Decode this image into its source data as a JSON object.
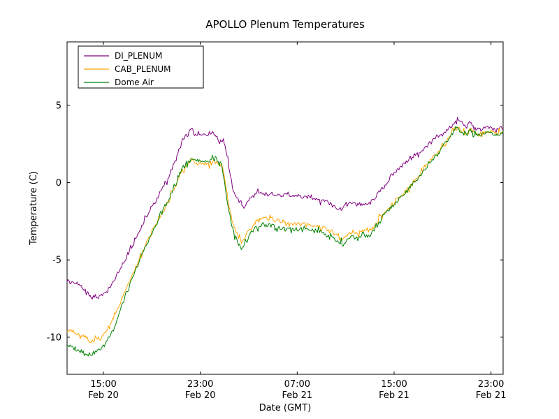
{
  "figure": {
    "title": "APOLLO Plenum Temperatures",
    "xlabel": "Date (GMT)",
    "ylabel": "Temperature (C)",
    "background": "#ffffff",
    "frame_color": "#000000"
  },
  "chart_data": {
    "type": "line",
    "title": "APOLLO Plenum Temperatures",
    "xlabel": "Date (GMT)",
    "ylabel": "Temperature (C)",
    "x_encoding": "hours after Feb 20 12:00 GMT",
    "xlim": [
      0,
      36
    ],
    "ylim": [
      -12.4,
      9.1
    ],
    "grid": false,
    "legend_position": "upper left",
    "yticks": [
      5,
      0,
      -5,
      -10
    ],
    "xticks": [
      {
        "t": 3,
        "label": [
          "15:00",
          "Feb 20"
        ]
      },
      {
        "t": 11,
        "label": [
          "23:00",
          "Feb 20"
        ]
      },
      {
        "t": 19,
        "label": [
          "07:00",
          "Feb 21"
        ]
      },
      {
        "t": 27,
        "label": [
          "15:00",
          "Feb 21"
        ]
      },
      {
        "t": 35,
        "label": [
          "23:00",
          "Feb 21"
        ]
      }
    ],
    "noise_amplitude": 0.12,
    "series": [
      {
        "name": "DI_PLENUM",
        "color": "#800080",
        "points": [
          [
            0,
            -6.3
          ],
          [
            0.5,
            -6.5
          ],
          [
            1,
            -6.6
          ],
          [
            1.5,
            -7.0
          ],
          [
            2,
            -7.4
          ],
          [
            2.5,
            -7.3
          ],
          [
            3,
            -7.2
          ],
          [
            3.5,
            -6.8
          ],
          [
            4,
            -6.2
          ],
          [
            4.5,
            -5.4
          ],
          [
            5,
            -4.7
          ],
          [
            5.5,
            -3.9
          ],
          [
            6,
            -3.1
          ],
          [
            6.5,
            -2.3
          ],
          [
            7,
            -1.6
          ],
          [
            7.5,
            -0.9
          ],
          [
            8,
            -0.2
          ],
          [
            8.5,
            0.6
          ],
          [
            9,
            1.5
          ],
          [
            9.3,
            2.2
          ],
          [
            9.6,
            2.9
          ],
          [
            10,
            3.1
          ],
          [
            10.3,
            3.5
          ],
          [
            10.6,
            3.2
          ],
          [
            11,
            3.2
          ],
          [
            11.5,
            3.1
          ],
          [
            12,
            3.3
          ],
          [
            12.3,
            3.0
          ],
          [
            12.6,
            2.6
          ],
          [
            12.9,
            2.8
          ],
          [
            13.2,
            1.8
          ],
          [
            13.5,
            0.3
          ],
          [
            13.8,
            -0.6
          ],
          [
            14.2,
            -1.2
          ],
          [
            14.6,
            -1.6
          ],
          [
            15,
            -1.1
          ],
          [
            15.5,
            -0.8
          ],
          [
            16,
            -0.7
          ],
          [
            16.5,
            -0.8
          ],
          [
            17,
            -0.7
          ],
          [
            17.5,
            -0.8
          ],
          [
            18,
            -0.8
          ],
          [
            18.5,
            -0.9
          ],
          [
            19,
            -0.8
          ],
          [
            19.5,
            -1.0
          ],
          [
            20,
            -0.9
          ],
          [
            20.5,
            -1.0
          ],
          [
            21,
            -1.1
          ],
          [
            21.5,
            -1.2
          ],
          [
            22,
            -1.4
          ],
          [
            22.4,
            -1.7
          ],
          [
            22.8,
            -1.6
          ],
          [
            23.2,
            -1.4
          ],
          [
            23.6,
            -1.3
          ],
          [
            24,
            -1.5
          ],
          [
            24.4,
            -1.4
          ],
          [
            24.8,
            -1.4
          ],
          [
            25.2,
            -1.2
          ],
          [
            25.6,
            -0.8
          ],
          [
            26,
            -0.4
          ],
          [
            26.5,
            0.1
          ],
          [
            27,
            0.6
          ],
          [
            27.5,
            1.0
          ],
          [
            28,
            1.3
          ],
          [
            28.5,
            1.6
          ],
          [
            29,
            1.9
          ],
          [
            29.5,
            2.2
          ],
          [
            30,
            2.6
          ],
          [
            30.5,
            2.9
          ],
          [
            31,
            3.1
          ],
          [
            31.5,
            3.5
          ],
          [
            32,
            3.9
          ],
          [
            32.3,
            4.1
          ],
          [
            32.6,
            3.8
          ],
          [
            33,
            3.6
          ],
          [
            33.3,
            3.9
          ],
          [
            33.6,
            3.5
          ],
          [
            34,
            3.4
          ],
          [
            34.5,
            3.6
          ],
          [
            35,
            3.5
          ],
          [
            35.5,
            3.4
          ],
          [
            36,
            3.5
          ]
        ]
      },
      {
        "name": "CAB_PLENUM",
        "color": "#ffa500",
        "points": [
          [
            0,
            -9.5
          ],
          [
            0.5,
            -9.7
          ],
          [
            1,
            -9.9
          ],
          [
            1.5,
            -10.0
          ],
          [
            2,
            -10.3
          ],
          [
            2.5,
            -10.1
          ],
          [
            3,
            -9.9
          ],
          [
            3.5,
            -9.3
          ],
          [
            4,
            -8.5
          ],
          [
            4.5,
            -7.6
          ],
          [
            5,
            -6.7
          ],
          [
            5.5,
            -5.8
          ],
          [
            6,
            -4.9
          ],
          [
            6.5,
            -4.0
          ],
          [
            7,
            -3.2
          ],
          [
            7.5,
            -2.5
          ],
          [
            8,
            -1.8
          ],
          [
            8.5,
            -1.0
          ],
          [
            9,
            -0.2
          ],
          [
            9.3,
            0.5
          ],
          [
            9.6,
            1.0
          ],
          [
            10,
            1.2
          ],
          [
            10.3,
            1.6
          ],
          [
            10.6,
            1.3
          ],
          [
            11,
            1.3
          ],
          [
            11.5,
            1.2
          ],
          [
            12,
            1.4
          ],
          [
            12.4,
            1.3
          ],
          [
            12.8,
            1.1
          ],
          [
            13,
            0.3
          ],
          [
            13.3,
            -1.2
          ],
          [
            13.6,
            -2.4
          ],
          [
            14,
            -3.3
          ],
          [
            14.4,
            -3.9
          ],
          [
            14.8,
            -3.4
          ],
          [
            15.2,
            -2.9
          ],
          [
            15.6,
            -2.5
          ],
          [
            16,
            -2.4
          ],
          [
            16.5,
            -2.3
          ],
          [
            17,
            -2.4
          ],
          [
            17.5,
            -2.5
          ],
          [
            18,
            -2.6
          ],
          [
            18.5,
            -2.7
          ],
          [
            19,
            -2.7
          ],
          [
            19.5,
            -2.6
          ],
          [
            20,
            -2.7
          ],
          [
            20.5,
            -2.8
          ],
          [
            21,
            -2.9
          ],
          [
            21.5,
            -3.0
          ],
          [
            22,
            -3.2
          ],
          [
            22.4,
            -3.6
          ],
          [
            22.8,
            -3.7
          ],
          [
            23.2,
            -3.3
          ],
          [
            23.6,
            -3.2
          ],
          [
            24,
            -3.4
          ],
          [
            24.4,
            -3.1
          ],
          [
            24.8,
            -3.2
          ],
          [
            25.2,
            -3.0
          ],
          [
            25.6,
            -2.6
          ],
          [
            26,
            -2.1
          ],
          [
            26.5,
            -1.7
          ],
          [
            27,
            -1.3
          ],
          [
            27.5,
            -0.9
          ],
          [
            28,
            -0.5
          ],
          [
            28.5,
            0.0
          ],
          [
            29,
            0.4
          ],
          [
            29.5,
            0.9
          ],
          [
            30,
            1.4
          ],
          [
            30.5,
            1.9
          ],
          [
            31,
            2.4
          ],
          [
            31.5,
            2.9
          ],
          [
            32,
            3.4
          ],
          [
            32.3,
            3.6
          ],
          [
            32.6,
            3.3
          ],
          [
            33,
            3.1
          ],
          [
            33.3,
            3.5
          ],
          [
            33.6,
            3.2
          ],
          [
            34,
            3.1
          ],
          [
            34.5,
            3.3
          ],
          [
            35,
            3.3
          ],
          [
            35.5,
            3.2
          ],
          [
            36,
            3.3
          ]
        ]
      },
      {
        "name": "Dome Air",
        "color": "#008000",
        "points": [
          [
            0,
            -10.5
          ],
          [
            0.5,
            -10.7
          ],
          [
            1,
            -10.9
          ],
          [
            1.5,
            -11.0
          ],
          [
            2,
            -11.1
          ],
          [
            2.5,
            -10.9
          ],
          [
            3,
            -10.6
          ],
          [
            3.5,
            -9.9
          ],
          [
            4,
            -9.2
          ],
          [
            4.5,
            -8.0
          ],
          [
            5,
            -7.0
          ],
          [
            5.5,
            -6.0
          ],
          [
            6,
            -5.0
          ],
          [
            6.5,
            -4.1
          ],
          [
            7,
            -3.3
          ],
          [
            7.5,
            -2.5
          ],
          [
            8,
            -1.7
          ],
          [
            8.5,
            -0.9
          ],
          [
            9,
            -0.1
          ],
          [
            9.3,
            0.6
          ],
          [
            9.6,
            1.1
          ],
          [
            10,
            1.3
          ],
          [
            10.3,
            1.5
          ],
          [
            10.6,
            1.4
          ],
          [
            11,
            1.4
          ],
          [
            11.5,
            1.3
          ],
          [
            12,
            1.5
          ],
          [
            12.4,
            1.3
          ],
          [
            12.8,
            1.0
          ],
          [
            13,
            0.0
          ],
          [
            13.3,
            -1.6
          ],
          [
            13.6,
            -2.8
          ],
          [
            14,
            -3.7
          ],
          [
            14.4,
            -4.3
          ],
          [
            14.8,
            -3.7
          ],
          [
            15.2,
            -3.2
          ],
          [
            15.6,
            -2.9
          ],
          [
            16,
            -2.8
          ],
          [
            16.5,
            -2.7
          ],
          [
            17,
            -2.8
          ],
          [
            17.5,
            -2.9
          ],
          [
            18,
            -3.0
          ],
          [
            18.5,
            -3.1
          ],
          [
            19,
            -3.0
          ],
          [
            19.5,
            -2.9
          ],
          [
            20,
            -3.0
          ],
          [
            20.5,
            -3.1
          ],
          [
            21,
            -3.2
          ],
          [
            21.5,
            -3.3
          ],
          [
            22,
            -3.5
          ],
          [
            22.4,
            -3.9
          ],
          [
            22.8,
            -4.0
          ],
          [
            23.2,
            -3.6
          ],
          [
            23.6,
            -3.4
          ],
          [
            24,
            -3.7
          ],
          [
            24.4,
            -3.3
          ],
          [
            24.8,
            -3.5
          ],
          [
            25.2,
            -3.2
          ],
          [
            25.6,
            -2.8
          ],
          [
            26,
            -2.3
          ],
          [
            26.5,
            -1.8
          ],
          [
            27,
            -1.4
          ],
          [
            27.5,
            -1.0
          ],
          [
            28,
            -0.6
          ],
          [
            28.5,
            -0.1
          ],
          [
            29,
            0.3
          ],
          [
            29.5,
            0.8
          ],
          [
            30,
            1.3
          ],
          [
            30.5,
            1.8
          ],
          [
            31,
            2.3
          ],
          [
            31.5,
            2.8
          ],
          [
            32,
            3.4
          ],
          [
            32.2,
            3.7
          ],
          [
            32.5,
            3.3
          ],
          [
            33,
            3.1
          ],
          [
            33.3,
            3.4
          ],
          [
            33.6,
            3.1
          ],
          [
            34,
            3.0
          ],
          [
            34.5,
            3.2
          ],
          [
            35,
            3.2
          ],
          [
            35.5,
            3.1
          ],
          [
            36,
            3.2
          ]
        ]
      }
    ]
  }
}
